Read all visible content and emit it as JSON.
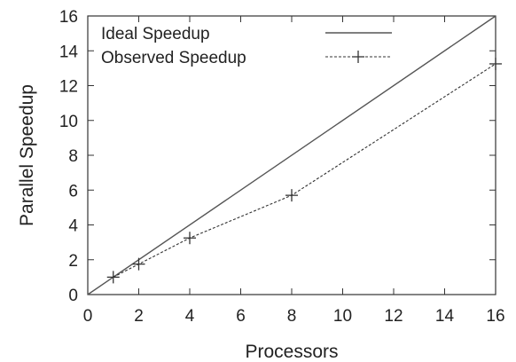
{
  "chart_data": {
    "type": "line",
    "xlabel": "Processors",
    "ylabel": "Parallel Speedup",
    "xlim": [
      0,
      16
    ],
    "ylim": [
      0,
      16
    ],
    "xticks": [
      "0",
      "2",
      "4",
      "6",
      "8",
      "10",
      "12",
      "14",
      "16"
    ],
    "yticks": [
      "0",
      "2",
      "4",
      "6",
      "8",
      "10",
      "12",
      "14",
      "16"
    ],
    "grid": false,
    "legend_position": "top-left",
    "series": [
      {
        "name": "Ideal Speedup",
        "style": "solid",
        "marker": "none",
        "color": "#555555",
        "x": [
          0,
          16
        ],
        "y": [
          0,
          16
        ]
      },
      {
        "name": "Observed Speedup",
        "style": "dashed",
        "marker": "plus",
        "color": "#333333",
        "x": [
          1,
          2,
          4,
          8,
          16
        ],
        "y": [
          1.0,
          1.75,
          3.25,
          5.7,
          13.25
        ]
      }
    ]
  }
}
